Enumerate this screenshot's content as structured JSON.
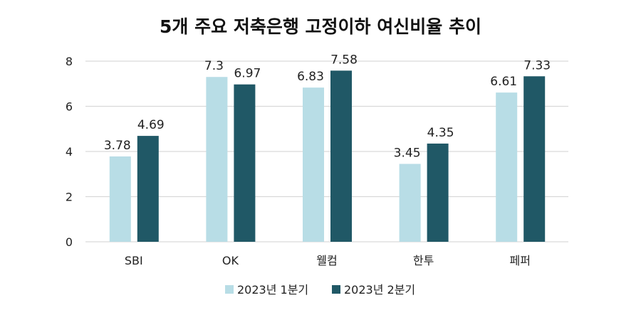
{
  "chart_data": {
    "type": "bar",
    "title": "5개 주요 저축은행 고정이하 여신비율 추이",
    "categories": [
      "SBI",
      "OK",
      "웰컴",
      "한투",
      "페퍼"
    ],
    "series": [
      {
        "name": "2023년 1분기",
        "color": "#b8dde6",
        "values": [
          3.78,
          7.3,
          6.83,
          3.45,
          6.61
        ],
        "labels": [
          "3.78",
          "7.3",
          "6.83",
          "3.45",
          "6.61"
        ]
      },
      {
        "name": "2023년 2분기",
        "color": "#205866",
        "values": [
          4.69,
          6.97,
          7.58,
          4.35,
          7.33
        ],
        "labels": [
          "4.69",
          "6.97",
          "7.58",
          "4.35",
          "7.33"
        ]
      }
    ],
    "y_ticks": [
      "0",
      "2",
      "4",
      "6",
      "8"
    ],
    "ylim": [
      0,
      8
    ],
    "grid": true,
    "legend_position": "bottom"
  }
}
